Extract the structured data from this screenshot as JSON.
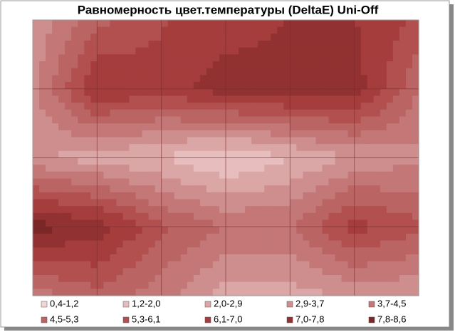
{
  "chart_data": {
    "type": "contour",
    "title": "Равномерность цвет.температуры (DeltaE) Uni-Off",
    "z": [
      [
        3.0,
        5.0,
        6.0,
        6.5,
        7.0,
        7.0,
        6.0
      ],
      [
        3.5,
        7.0,
        6.5,
        7.5,
        7.5,
        7.5,
        4.5
      ],
      [
        3.0,
        2.5,
        2.0,
        1.0,
        2.0,
        3.0,
        3.5
      ],
      [
        8.2,
        7.5,
        5.5,
        4.5,
        4.5,
        6.5,
        5.5
      ],
      [
        4.0,
        5.0,
        4.0,
        2.5,
        2.5,
        3.0,
        3.0
      ]
    ],
    "levels": [
      {
        "from": 0.4,
        "to": 1.2,
        "label": "0,4-1,2",
        "color": "#f2d6d6"
      },
      {
        "from": 1.2,
        "to": 2.0,
        "label": "1,2-2,0",
        "color": "#e8bdbd"
      },
      {
        "from": 2.0,
        "to": 2.9,
        "label": "2,0-2,9",
        "color": "#dba6a6"
      },
      {
        "from": 2.9,
        "to": 3.7,
        "label": "2,9-3,7",
        "color": "#cf8e8e"
      },
      {
        "from": 3.7,
        "to": 4.5,
        "label": "3,7-4,5",
        "color": "#c47777"
      },
      {
        "from": 4.5,
        "to": 5.3,
        "label": "4,5-5,3",
        "color": "#bb6464"
      },
      {
        "from": 5.3,
        "to": 6.1,
        "label": "5,3-6,1",
        "color": "#b24f4f"
      },
      {
        "from": 6.1,
        "to": 7.0,
        "label": "6,1-7,0",
        "color": "#a53d3d"
      },
      {
        "from": 7.0,
        "to": 7.8,
        "label": "7,0-7,8",
        "color": "#923131"
      },
      {
        "from": 7.8,
        "to": 8.6,
        "label": "7,8-8,6",
        "color": "#7c2727"
      }
    ]
  }
}
